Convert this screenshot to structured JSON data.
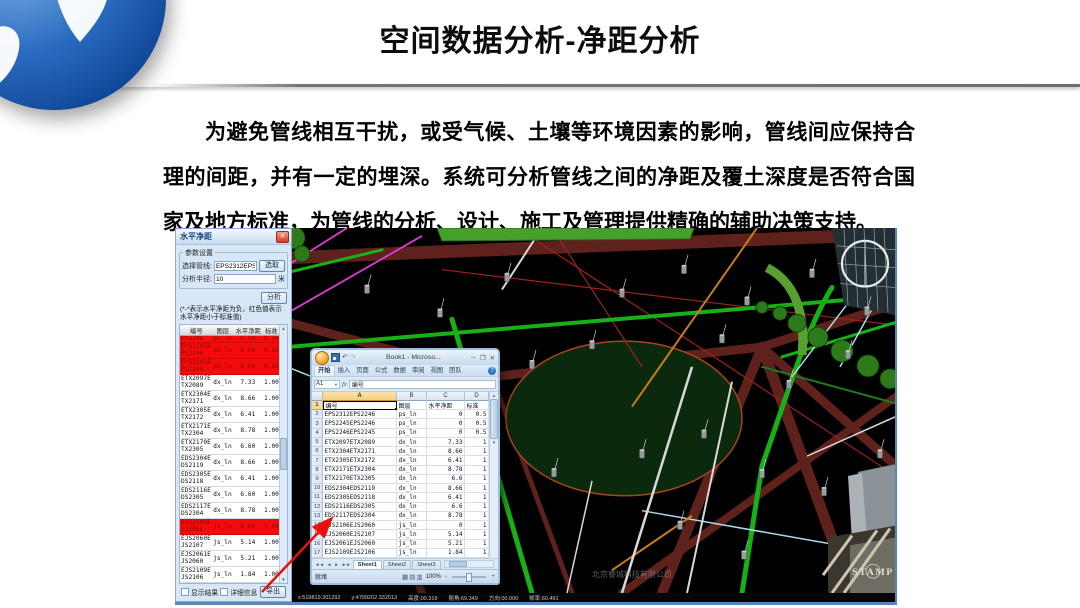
{
  "slide": {
    "title": "空间数据分析-净距分析",
    "paragraph": "为避免管线相互干扰，或受气候、土壤等环境因素的影响，管线间应保持合理的间距，并有一定的埋深。系统可分析管线之间的净距及覆土深度是否符合国家及地方标准，为管线的分析、设计、施工及管理提供精确的辅助决策支持。"
  },
  "panel": {
    "title": "水平净距",
    "params_group_label": "参数设置",
    "pipeline_label": "选择管线:",
    "pipeline_value": "EPS2312EPS",
    "pick_button": "选取",
    "radius_label": "分析半径:",
    "radius_value": "10",
    "radius_unit": "米",
    "analyze_button": "分析",
    "note": "(*-*表示水平净距为负，红色值表示水平净距小于标准值)",
    "columns": [
      "编号",
      "图层",
      "水平净距",
      "标准"
    ],
    "rows": [
      {
        "id": "EPS2312EPS2246",
        "layer": "ps_ln",
        "value": "0.00",
        "std": "0.50",
        "red": true,
        "clipped": true
      },
      {
        "id": "EPS2245EPS2246",
        "layer": "ps_ln",
        "value": "0.00",
        "std": "0.50",
        "red": true
      },
      {
        "id": "EPS2246EPS2245",
        "layer": "ps_ln",
        "value": "0.00",
        "std": "0.50",
        "red": true
      },
      {
        "id": "ETX2097ETX2089",
        "layer": "dx_ln",
        "value": "7.33",
        "std": "1.00"
      },
      {
        "id": "ETX2304ETX2171",
        "layer": "dx_ln",
        "value": "8.66",
        "std": "1.00"
      },
      {
        "id": "ETX2305ETX2172",
        "layer": "dx_ln",
        "value": "6.41",
        "std": "1.00"
      },
      {
        "id": "ETX2171ETX2304",
        "layer": "dx_ln",
        "value": "8.78",
        "std": "1.00"
      },
      {
        "id": "ETX2170ETX2305",
        "layer": "dx_ln",
        "value": "6.60",
        "std": "1.00"
      },
      {
        "id": "EDS2304EDS2119",
        "layer": "dx_ln",
        "value": "8.66",
        "std": "1.00"
      },
      {
        "id": "EDS2305EDS2118",
        "layer": "dx_ln",
        "value": "6.41",
        "std": "1.00"
      },
      {
        "id": "EDS2116EDS2305",
        "layer": "dx_ln",
        "value": "6.60",
        "std": "1.00"
      },
      {
        "id": "EDS2117EDS2304",
        "layer": "dx_ln",
        "value": "8.78",
        "std": "1.00"
      },
      {
        "id": "EJS2106EJS2060",
        "layer": "js_ln",
        "value": "0.00",
        "std": "1.00",
        "red": true
      },
      {
        "id": "EJS2060EJS2107",
        "layer": "js_ln",
        "value": "5.14",
        "std": "1.00"
      },
      {
        "id": "EJS2061EJS2060",
        "layer": "js_ln",
        "value": "5.21",
        "std": "1.00"
      },
      {
        "id": "EJS2109EJS2106",
        "layer": "js_ln",
        "value": "1.84",
        "std": "1.00"
      }
    ],
    "show_results_label": "显示结果",
    "detail_label": "详细信息",
    "export_button": "导出"
  },
  "excel": {
    "window_title": "Book1 - Microso...",
    "ribbon_tabs": [
      "开始",
      "插入",
      "页面",
      "公式",
      "数据",
      "审阅",
      "视图",
      "团队"
    ],
    "name_box": "A1",
    "fx_label": "fx",
    "formula_value": "编号",
    "columns": [
      "A",
      "B",
      "C",
      "D"
    ],
    "header_row": [
      "编号",
      "图层",
      "水平净距",
      "标准"
    ],
    "rows": [
      [
        "EPS2312EPS2246",
        "ps_ln",
        "0",
        "0.5"
      ],
      [
        "EPS2245EPS2246",
        "ps_ln",
        "0",
        "0.5"
      ],
      [
        "EPS2246EPS2245",
        "ps_ln",
        "0",
        "0.5"
      ],
      [
        "ETX2097ETX2089",
        "dx_ln",
        "7.33",
        "1"
      ],
      [
        "ETX2304ETX2171",
        "dx_ln",
        "8.66",
        "1"
      ],
      [
        "ETX2305ETX2172",
        "dx_ln",
        "6.41",
        "1"
      ],
      [
        "ETX2171ETX2304",
        "dx_ln",
        "8.78",
        "1"
      ],
      [
        "ETX2170ETX2305",
        "dx_ln",
        "6.6",
        "1"
      ],
      [
        "EDS2304EDS2119",
        "dx_ln",
        "8.66",
        "1"
      ],
      [
        "EDS2305EDS2118",
        "dx_ln",
        "6.41",
        "1"
      ],
      [
        "EDS2116EDS2305",
        "dx_ln",
        "6.6",
        "1"
      ],
      [
        "EDS2117EDS2304",
        "dx_ln",
        "8.78",
        "1"
      ],
      [
        "EJS2106EJS2060",
        "js_ln",
        "0",
        "1"
      ],
      [
        "EJS2060EJS2107",
        "js_ln",
        "5.14",
        "1"
      ],
      [
        "EJS2061EJS2060",
        "js_ln",
        "5.21",
        "1"
      ],
      [
        "EJS2109EJS2106",
        "js_ln",
        "1.84",
        "1"
      ]
    ],
    "sheet_tabs": [
      "Sheet1",
      "Sheet2",
      "Sheet3"
    ],
    "status_ready": "就绪",
    "zoom_level": "100%"
  },
  "viewport": {
    "watermark": "北京睿城科技有限公司",
    "stamp_text": "STAMP",
    "status_items": [
      "x:519819.301292",
      "y:4799202.332013",
      "高度:00.319",
      "俯角:69.349",
      "方向:00.000",
      "帧率:60.491"
    ]
  },
  "colors": {
    "red_highlight": "#f50b0b",
    "panel_bg": "#d8e7f6",
    "excel_chrome": "#dbe8f5",
    "arrow": "#e8100c",
    "viewport_bg": "#000000"
  }
}
